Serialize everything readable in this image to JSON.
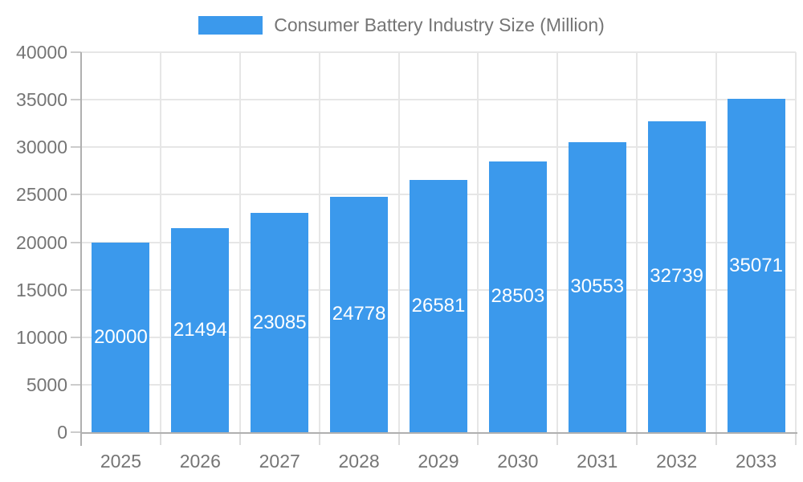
{
  "legend": {
    "label": "Consumer Battery Industry Size (Million)"
  },
  "colors": {
    "bar": "#3b99ec",
    "text_gray": "#757575",
    "bar_label": "#ffffff",
    "grid": "#e6e6e6",
    "axis": "#b0b0b0",
    "tick": "#cccccc",
    "tick_below": "#dcdcdc",
    "background": "#ffffff"
  },
  "chart_data": {
    "type": "bar",
    "title": "Consumer Battery Industry Size (Million)",
    "categories": [
      "2025",
      "2026",
      "2027",
      "2028",
      "2029",
      "2030",
      "2031",
      "2032",
      "2033"
    ],
    "values": [
      20000,
      21494,
      23085,
      24778,
      26581,
      28503,
      30553,
      32739,
      35071
    ],
    "series": [
      {
        "name": "Consumer Battery Industry Size (Million)",
        "values": [
          20000,
          21494,
          23085,
          24778,
          26581,
          28503,
          30553,
          32739,
          35071
        ]
      }
    ],
    "bar_labels": [
      "20000",
      "21494",
      "23085",
      "24778",
      "26581",
      "28503",
      "30553",
      "32739",
      "35071"
    ],
    "xlabel": "",
    "ylabel": "",
    "ylim": [
      0,
      40000
    ],
    "y_tick_step": 5000,
    "y_tick_values": [
      0,
      5000,
      10000,
      15000,
      20000,
      25000,
      30000,
      35000,
      40000
    ],
    "y_tick_labels": [
      "0",
      "5000",
      "10000",
      "15000",
      "20000",
      "25000",
      "30000",
      "35000",
      "40000"
    ],
    "grid": true,
    "grid_horizontal": true,
    "grid_vertical": true,
    "legend_position": "top",
    "bar_value_labels_visible": true,
    "bar_value_label_position": "center"
  }
}
